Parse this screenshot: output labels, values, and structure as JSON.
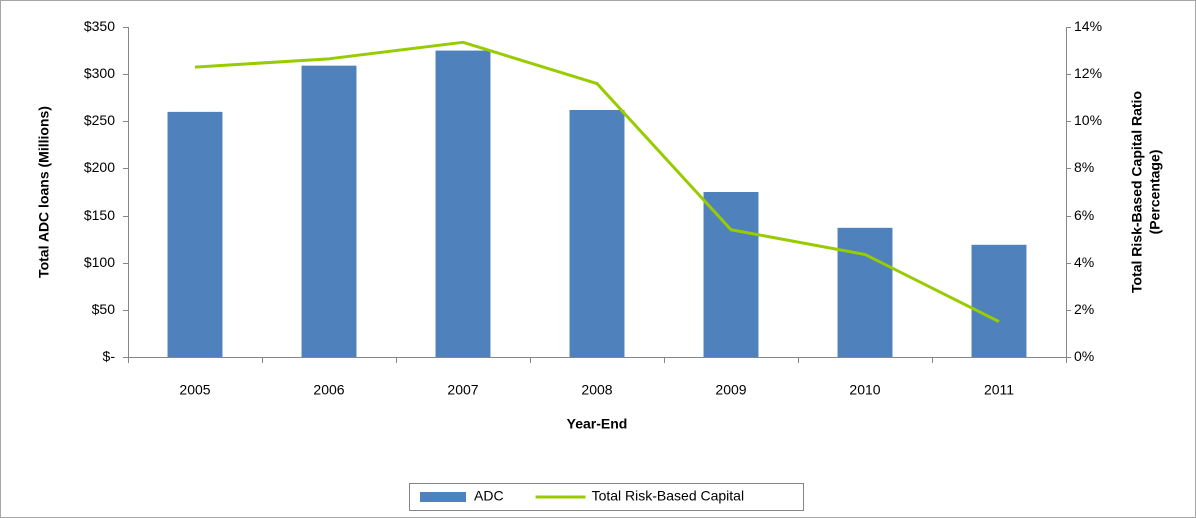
{
  "chart_data": {
    "type": "bar",
    "x_label": "Year-End",
    "y_label": "Total ADC loans (Millions)",
    "y2_label": [
      "Total Risk-Based Capital Ratio",
      "(Percentage)"
    ],
    "categories": [
      "2005",
      "2006",
      "2007",
      "2008",
      "2009",
      "2010",
      "2011"
    ],
    "series": [
      {
        "name": "ADC",
        "type": "bar",
        "color": "#4f81bd",
        "values": [
          260,
          309,
          325,
          262,
          175,
          137,
          119
        ]
      },
      {
        "name": "Total Risk-Based Capital",
        "type": "line",
        "axis": "y2",
        "color": "#99cc00",
        "values": [
          12.3,
          12.65,
          13.35,
          11.6,
          5.4,
          4.35,
          1.5
        ]
      }
    ],
    "ylim": [
      0,
      350
    ],
    "yticks": [
      {
        "value": 0,
        "label": "$-"
      },
      {
        "value": 50,
        "label": "$50"
      },
      {
        "value": 100,
        "label": "$100"
      },
      {
        "value": 150,
        "label": "$150"
      },
      {
        "value": 200,
        "label": "$200"
      },
      {
        "value": 250,
        "label": "$250"
      },
      {
        "value": 300,
        "label": "$300"
      },
      {
        "value": 350,
        "label": "$350"
      }
    ],
    "y2lim": [
      0,
      14
    ],
    "y2ticks": [
      {
        "value": 0,
        "label": "0%"
      },
      {
        "value": 2,
        "label": "2%"
      },
      {
        "value": 4,
        "label": "4%"
      },
      {
        "value": 6,
        "label": "6%"
      },
      {
        "value": 8,
        "label": "8%"
      },
      {
        "value": 10,
        "label": "10%"
      },
      {
        "value": 12,
        "label": "12%"
      },
      {
        "value": 14,
        "label": "14%"
      }
    ],
    "grid": false,
    "legend": "bottom"
  }
}
